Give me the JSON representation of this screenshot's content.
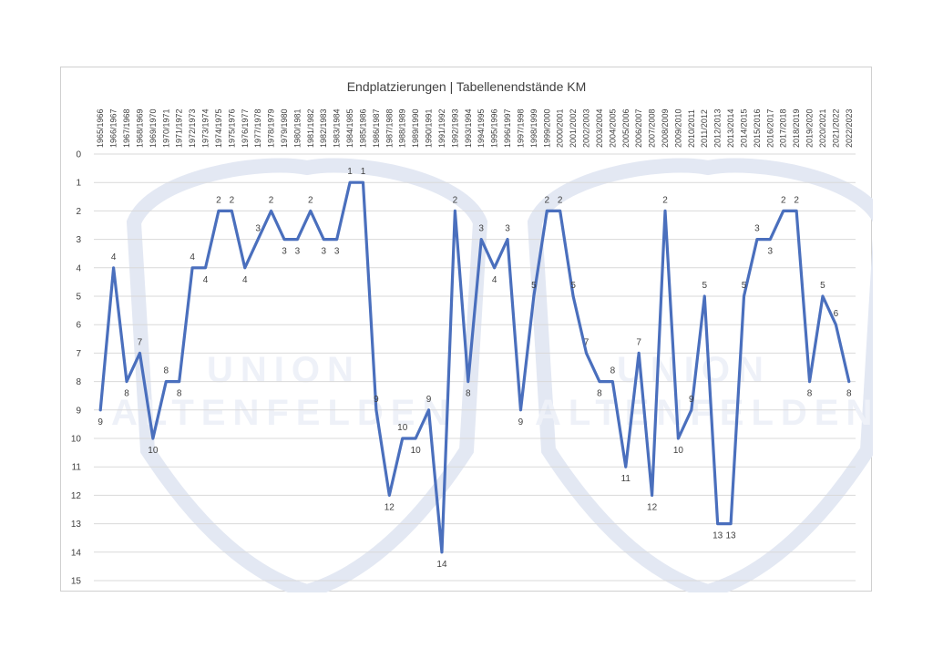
{
  "chart_data": {
    "type": "line",
    "title": "Endplatzierungen | Tabellenendstände KM",
    "x": [
      "1965/1966",
      "1966/1967",
      "1967/1968",
      "1968/1969",
      "1969/1970",
      "1970/1971",
      "1971/1972",
      "1972/1973",
      "1973/1974",
      "1974/1975",
      "1975/1976",
      "1976/1977",
      "1977/1978",
      "1978/1979",
      "1979/1980",
      "1980/1981",
      "1981/1982",
      "1982/1983",
      "1983/1984",
      "1984/1985",
      "1985/1986",
      "1986/1987",
      "1987/1988",
      "1988/1989",
      "1989/1990",
      "1990/1991",
      "1991/1992",
      "1992/1993",
      "1993/1994",
      "1994/1995",
      "1995/1996",
      "1996/1997",
      "1997/1998",
      "1998/1999",
      "1999/2000",
      "2000/2001",
      "2001/2002",
      "2002/2003",
      "2003/2004",
      "2004/2005",
      "2005/2006",
      "2006/2007",
      "2007/2008",
      "2008/2009",
      "2009/2010",
      "2010/2011",
      "2011/2012",
      "2012/2013",
      "2013/2014",
      "2014/2015",
      "2015/2016",
      "2016/2017",
      "2017/2018",
      "2018/2019",
      "2019/2020",
      "2020/2021",
      "2021/2022",
      "2022/2023"
    ],
    "series": [
      {
        "values": [
          9,
          4,
          8,
          7,
          10,
          8,
          8,
          4,
          4,
          2,
          2,
          4,
          3,
          2,
          3,
          3,
          2,
          3,
          3,
          1,
          1,
          9,
          12,
          10,
          10,
          9,
          14,
          2,
          8,
          3,
          4,
          3,
          9,
          5,
          2,
          2,
          5,
          7,
          8,
          8,
          11,
          7,
          12,
          2,
          10,
          9,
          5,
          13,
          13,
          5,
          3,
          3,
          2,
          2,
          8,
          5,
          6,
          8
        ]
      }
    ],
    "ylim": [
      0,
      15
    ],
    "y_inverted": true,
    "y_ticks": [
      0,
      1,
      2,
      3,
      4,
      5,
      6,
      7,
      8,
      9,
      10,
      11,
      12,
      13,
      14,
      15
    ],
    "xlabel": "",
    "ylabel": "",
    "grid": true,
    "legend": "none",
    "line_color": "#4a6fbd",
    "watermark_text": [
      "UNION",
      "ALTENFELDEN",
      "UNION",
      "ALTENFELDEN"
    ]
  }
}
